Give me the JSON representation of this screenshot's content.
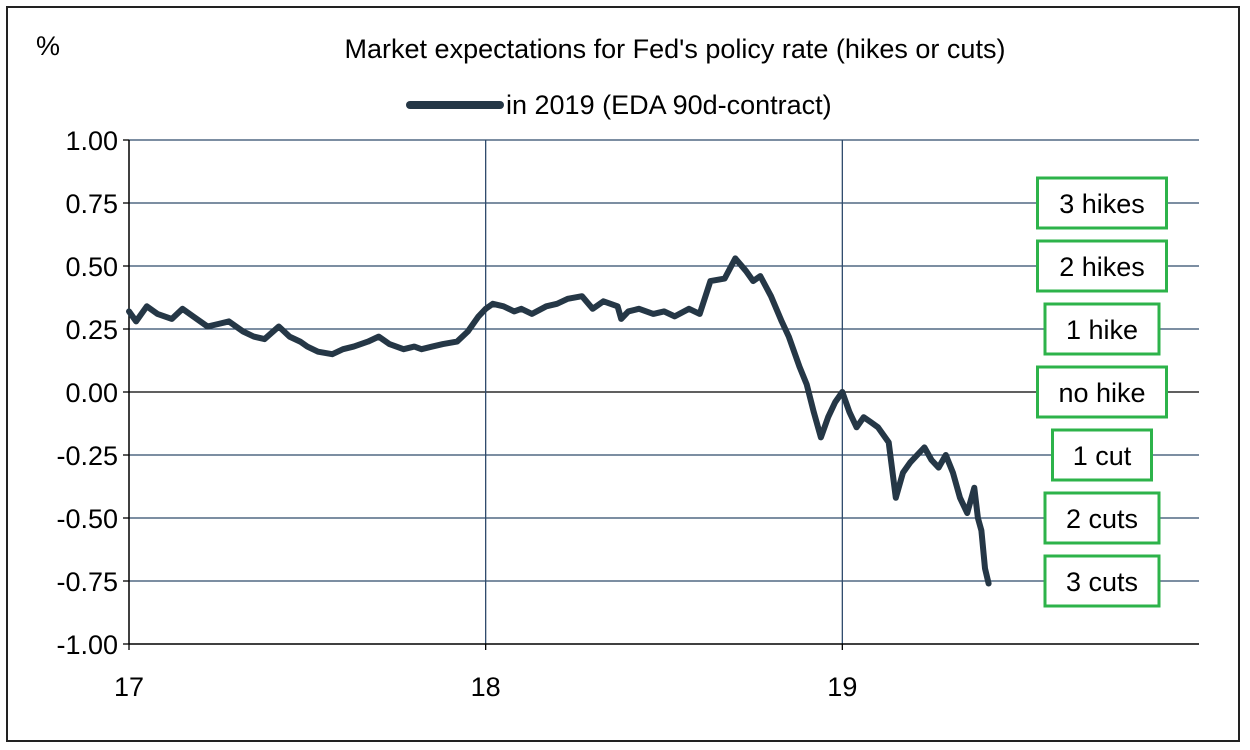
{
  "chart_data": {
    "type": "line",
    "title": "Market expectations for Fed's policy rate (hikes or cuts)",
    "ylabel": "%",
    "xlabel": "",
    "series": [
      {
        "name": "in 2019 (EDA 90d-contract)",
        "color": "#253746",
        "x": [
          17.0,
          17.02,
          17.05,
          17.08,
          17.12,
          17.15,
          17.18,
          17.22,
          17.25,
          17.28,
          17.32,
          17.35,
          17.38,
          17.42,
          17.45,
          17.48,
          17.5,
          17.53,
          17.57,
          17.6,
          17.63,
          17.67,
          17.7,
          17.73,
          17.77,
          17.8,
          17.82,
          17.85,
          17.88,
          17.92,
          17.95,
          17.98,
          18.0,
          18.02,
          18.05,
          18.08,
          18.1,
          18.13,
          18.17,
          18.2,
          18.23,
          18.27,
          18.3,
          18.33,
          18.37,
          18.38,
          18.4,
          18.43,
          18.47,
          18.5,
          18.53,
          18.57,
          18.6,
          18.63,
          18.67,
          18.7,
          18.73,
          18.75,
          18.77,
          18.8,
          18.83,
          18.85,
          18.88,
          18.9,
          18.92,
          18.94,
          18.96,
          18.98,
          19.0,
          19.02,
          19.04,
          19.06,
          19.08,
          19.1,
          19.13,
          19.15,
          19.17,
          19.19,
          19.21,
          19.23,
          19.25,
          19.27,
          19.29,
          19.31,
          19.33,
          19.35,
          19.37,
          19.38,
          19.39,
          19.4,
          19.41
        ],
        "y": [
          0.32,
          0.28,
          0.34,
          0.31,
          0.29,
          0.33,
          0.3,
          0.26,
          0.27,
          0.28,
          0.24,
          0.22,
          0.21,
          0.26,
          0.22,
          0.2,
          0.18,
          0.16,
          0.15,
          0.17,
          0.18,
          0.2,
          0.22,
          0.19,
          0.17,
          0.18,
          0.17,
          0.18,
          0.19,
          0.2,
          0.24,
          0.3,
          0.33,
          0.35,
          0.34,
          0.32,
          0.33,
          0.31,
          0.34,
          0.35,
          0.37,
          0.38,
          0.33,
          0.36,
          0.34,
          0.29,
          0.32,
          0.33,
          0.31,
          0.32,
          0.3,
          0.33,
          0.31,
          0.44,
          0.45,
          0.53,
          0.48,
          0.44,
          0.46,
          0.38,
          0.28,
          0.22,
          0.1,
          0.03,
          -0.08,
          -0.18,
          -0.1,
          -0.04,
          0.0,
          -0.08,
          -0.14,
          -0.1,
          -0.12,
          -0.14,
          -0.2,
          -0.42,
          -0.32,
          -0.28,
          -0.25,
          -0.22,
          -0.27,
          -0.3,
          -0.25,
          -0.32,
          -0.42,
          -0.48,
          -0.38,
          -0.5,
          -0.55,
          -0.7,
          -0.76
        ]
      }
    ],
    "xticks": [
      "17",
      "18",
      "19"
    ],
    "xtick_values": [
      17,
      18,
      19
    ],
    "xlim": [
      17,
      20
    ],
    "yticks": [
      "1.00",
      "0.75",
      "0.50",
      "0.25",
      "0.00",
      "-0.25",
      "-0.50",
      "-0.75",
      "-1.00"
    ],
    "ytick_values": [
      1.0,
      0.75,
      0.5,
      0.25,
      0.0,
      -0.25,
      -0.5,
      -0.75,
      -1.0
    ],
    "ylim": [
      -1.0,
      1.0
    ],
    "grid": true,
    "legend_placement": "top-center",
    "annotations": [
      {
        "text": "3 hikes",
        "y": 0.75
      },
      {
        "text": "2 hikes",
        "y": 0.5
      },
      {
        "text": "1 hike",
        "y": 0.25
      },
      {
        "text": "no hike",
        "y": 0.0
      },
      {
        "text": "1 cut",
        "y": -0.25
      },
      {
        "text": "2 cuts",
        "y": -0.5
      },
      {
        "text": "3 cuts",
        "y": -0.75
      }
    ],
    "annotation_border_color": "#2DB34A",
    "grid_color": "#2E4A6B"
  }
}
